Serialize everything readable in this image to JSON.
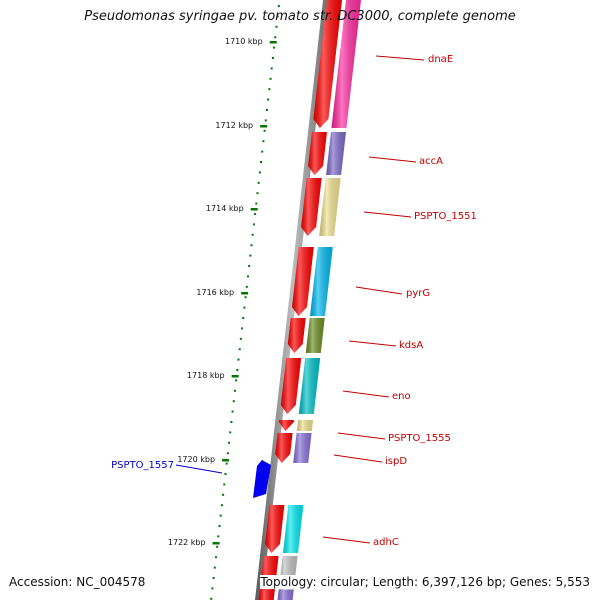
{
  "title": "Pseudomonas syringae pv. tomato str. DC3000, complete genome",
  "footer": {
    "accession": "Accession: NC_004578",
    "summary": "Topology: circular; Length: 6,397,126 bp; Genes: 5,553"
  },
  "ruler": {
    "unit": "kbp",
    "labels": [
      "1710 kbp",
      "1712 kbp",
      "1714 kbp",
      "1716 kbp",
      "1718 kbp",
      "1720 kbp",
      "1722 kbp"
    ]
  },
  "colors": {
    "gene_red": "#ff0000",
    "ruler_green": "#007700",
    "label_red": "#c00000",
    "label_blue": "#0000cc",
    "backbone": "#808080"
  },
  "genes": [
    {
      "name": "dnaE",
      "color": "#ff2aa0",
      "strand": "forward"
    },
    {
      "name": "accA",
      "color": "#7b68c8",
      "strand": "forward"
    },
    {
      "name": "PSPTO_1551",
      "color": "#eee08f",
      "strand": "forward"
    },
    {
      "name": "pyrG",
      "color": "#00b8f0",
      "strand": "forward"
    },
    {
      "name": "kdsA",
      "color": "#6b8e23",
      "strand": "forward"
    },
    {
      "name": "eno",
      "color": "#00c0c8",
      "strand": "forward"
    },
    {
      "name": "PSPTO_1555",
      "color": "#eee08f",
      "strand": "forward"
    },
    {
      "name": "ispD",
      "color": "#8870d8",
      "strand": "forward"
    },
    {
      "name": "PSPTO_1557",
      "color": "#0000ee",
      "strand": "reverse"
    },
    {
      "name": "adhC",
      "color": "#00e8f0",
      "strand": "forward"
    },
    {
      "name": "",
      "color": "#c0c0c0",
      "strand": "forward"
    },
    {
      "name": "",
      "color": "#8870d8",
      "strand": "forward"
    }
  ]
}
